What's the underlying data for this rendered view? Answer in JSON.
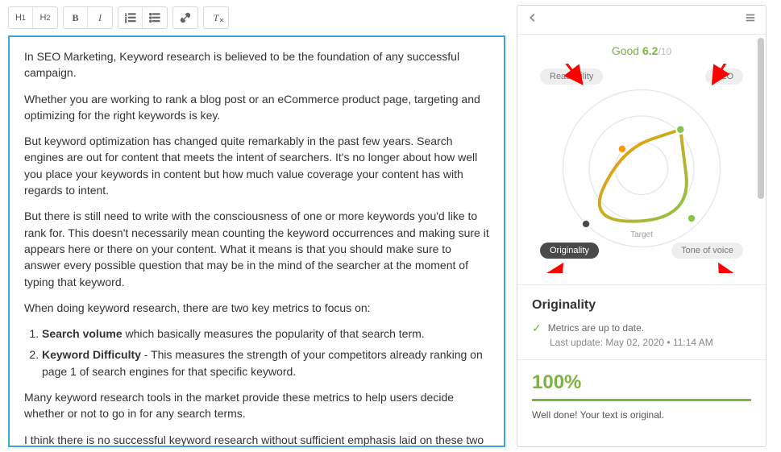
{
  "editor": {
    "paragraphs": [
      "In SEO Marketing, Keyword research is believed to be the foundation of any successful campaign.",
      "Whether you are working to rank a blog post or an eCommerce product page, targeting and optimizing for the right keywords is key.",
      "But keyword optimization has changed quite remarkably in the past few years. Search engines are out for content that meets the intent of searchers. It's no longer about how well you place your keywords in content but how much value coverage your content has with regards to intent.",
      "But there is still need to write with the consciousness of one or more keywords you'd like to rank for. This doesn't necessarily mean counting the keyword occurrences and making sure it appears here or there on your content.  What it means is that you should make sure to answer every possible question that may be in the mind of the searcher at the moment of typing that keyword.",
      "When doing keyword research, there are two key metrics to focus on:"
    ],
    "list": [
      {
        "term": "Search volume",
        "rest": " which basically measures the popularity of that search term."
      },
      {
        "term": "Keyword Difficulty",
        "rest": " - This measures the strength of your competitors already ranking on page 1 of search engines for that specific keyword."
      }
    ],
    "after": [
      "Many keyword research tools in the market provide these metrics to help users decide whether or not to go in for any search terms.",
      "I think there is no successful keyword research without sufficient emphasis laid on these two factors."
    ]
  },
  "toolbar": {
    "h1": "H₁",
    "h2": "H₂",
    "bold": "B",
    "italic": "I"
  },
  "panel": {
    "score": {
      "label": "Good",
      "value": "6.2",
      "max": "/10",
      "color": "#7cb342"
    },
    "pills": {
      "tl": "Readability",
      "tr": "SEO",
      "bl": "Originality",
      "br": "Tone of voice",
      "active": "bl"
    },
    "target_label": "Target",
    "radar": {
      "rings": 3,
      "ring_color": "#e0e0e0",
      "axis_color": "#e0e0e0",
      "background": "#ffffff",
      "points": [
        {
          "angle_deg": -45,
          "r": 0.7,
          "color": "#8bc34a"
        },
        {
          "angle_deg": 45,
          "r": 0.9,
          "color": "#8bc34a"
        },
        {
          "angle_deg": 135,
          "r": 1.0,
          "color": "#4a4a4a"
        },
        {
          "angle_deg": -135,
          "r": 0.35,
          "color": "#ff9800"
        }
      ],
      "gradient_from": "#ff9800",
      "gradient_to": "#8bc34a",
      "stroke_width": 3
    },
    "arrows": {
      "color": "#ff0000"
    },
    "originality": {
      "title": "Originality",
      "status": "Metrics are up to date.",
      "sub": "Last update: May 02, 2020 • 11:14 AM",
      "pct": "100%",
      "bar_color": "#7cb342",
      "msg": "Well done! Your text is original."
    }
  }
}
